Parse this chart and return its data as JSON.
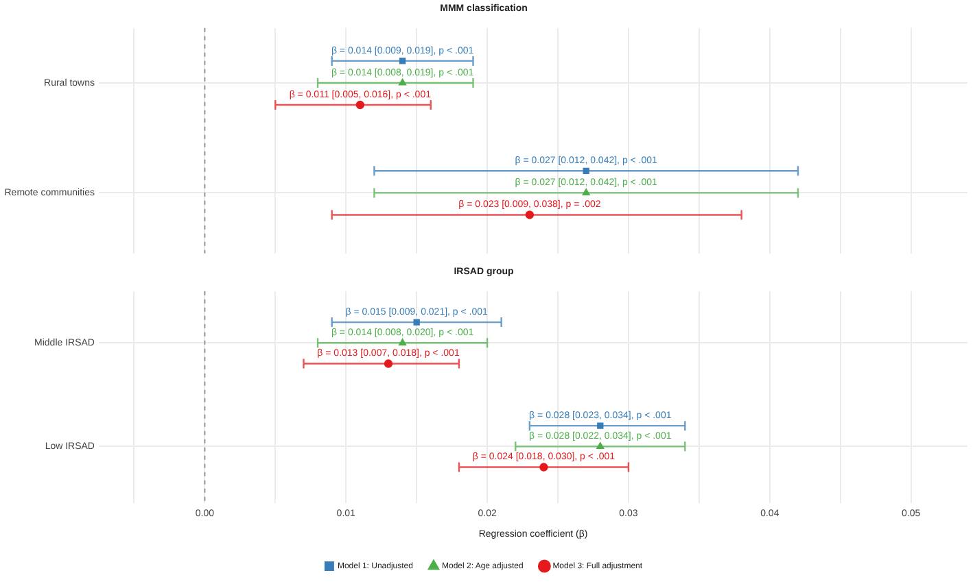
{
  "chart_data": [
    {
      "type": "scatter",
      "title": "MMM classification",
      "orientation": "horizontal",
      "categories": [
        "Rural towns",
        "Remote communities"
      ],
      "series": [
        {
          "color": "#377eb8",
          "marker": "square",
          "values": [
            0.014,
            0.027
          ],
          "errors": [
            [
              0.009,
              0.019
            ],
            [
              0.012,
              0.042
            ]
          ],
          "value_labels": [
            "β = 0.014 [0.009, 0.019], p < .001",
            "β = 0.027 [0.012, 0.042], p < .001"
          ]
        },
        {
          "color": "#4daf4a",
          "marker": "triangle",
          "values": [
            0.014,
            0.027
          ],
          "errors": [
            [
              0.008,
              0.019
            ],
            [
              0.012,
              0.042
            ]
          ],
          "value_labels": [
            "β = 0.014 [0.008, 0.019], p < .001",
            "β = 0.027 [0.012, 0.042], p < .001"
          ]
        },
        {
          "color": "#e41a1c",
          "marker": "circle",
          "values": [
            0.011,
            0.023
          ],
          "errors": [
            [
              0.005,
              0.016
            ],
            [
              0.009,
              0.038
            ]
          ],
          "value_labels": [
            "β = 0.011 [0.005, 0.016], p < .001",
            "β = 0.023 [0.009, 0.038], p = .002"
          ]
        }
      ],
      "xlim": [
        -0.0075,
        0.054
      ],
      "xticks": [
        {
          "value": -0.005,
          "label": null
        },
        {
          "value": 0,
          "label": null
        },
        {
          "value": 0.005,
          "label": null
        },
        {
          "value": 0.01,
          "label": null
        },
        {
          "value": 0.015,
          "label": null
        },
        {
          "value": 0.02,
          "label": null
        },
        {
          "value": 0.025,
          "label": null
        },
        {
          "value": 0.03,
          "label": null
        },
        {
          "value": 0.035,
          "label": null
        },
        {
          "value": 0.04,
          "label": null
        },
        {
          "value": 0.045,
          "label": null
        },
        {
          "value": 0.05,
          "label": null
        }
      ],
      "grid": true,
      "tick_labels": "y",
      "ref_lines": [
        {
          "axis": "x",
          "value": 0,
          "color": "#999999",
          "line_style": "dashed"
        }
      ]
    },
    {
      "type": "scatter",
      "title": "IRSAD group",
      "orientation": "horizontal",
      "categories": [
        "Middle IRSAD",
        "Low IRSAD"
      ],
      "xlabel": "Regression coefficient (β)",
      "series": [
        {
          "name": "Model 1: Unadjusted",
          "color": "#377eb8",
          "marker": "square",
          "values": [
            0.015,
            0.028
          ],
          "errors": [
            [
              0.009,
              0.021
            ],
            [
              0.023,
              0.034
            ]
          ],
          "value_labels": [
            "β = 0.015 [0.009, 0.021], p < .001",
            "β = 0.028 [0.023, 0.034], p < .001"
          ]
        },
        {
          "name": "Model 2: Age adjusted",
          "color": "#4daf4a",
          "marker": "triangle",
          "values": [
            0.014,
            0.028
          ],
          "errors": [
            [
              0.008,
              0.02
            ],
            [
              0.022,
              0.034
            ]
          ],
          "value_labels": [
            "β = 0.014 [0.008, 0.020], p < .001",
            "β = 0.028 [0.022, 0.034], p < .001"
          ]
        },
        {
          "name": "Model 3: Full adjustment",
          "color": "#e41a1c",
          "marker": "circle",
          "values": [
            0.013,
            0.024
          ],
          "errors": [
            [
              0.007,
              0.018
            ],
            [
              0.018,
              0.03
            ]
          ],
          "value_labels": [
            "β = 0.013 [0.007, 0.018], p < .001",
            "β = 0.024 [0.018, 0.030], p < .001"
          ]
        }
      ],
      "xlim": [
        -0.0075,
        0.054
      ],
      "xticks": [
        {
          "value": -0.005,
          "label": null
        },
        {
          "value": 0,
          "label": "0.00"
        },
        {
          "value": 0.005,
          "label": null
        },
        {
          "value": 0.01,
          "label": "0.01"
        },
        {
          "value": 0.015,
          "label": null
        },
        {
          "value": 0.02,
          "label": "0.02"
        },
        {
          "value": 0.025,
          "label": null
        },
        {
          "value": 0.03,
          "label": "0.03"
        },
        {
          "value": 0.035,
          "label": null
        },
        {
          "value": 0.04,
          "label": "0.04"
        },
        {
          "value": 0.045,
          "label": null
        },
        {
          "value": 0.05,
          "label": "0.05"
        }
      ],
      "grid": true,
      "legend": "bottom",
      "ref_lines": [
        {
          "axis": "x",
          "value": 0,
          "color": "#999999",
          "line_style": "dashed"
        }
      ]
    }
  ]
}
